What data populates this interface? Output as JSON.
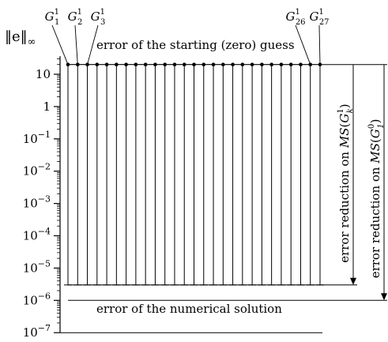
{
  "y_axis": {
    "label": "‖e‖",
    "label_sub": "∞",
    "scale": "log",
    "range": [
      1e-07,
      100
    ],
    "ticks": [
      {
        "exp": 1,
        "base": "10",
        "sup": ""
      },
      {
        "exp": 0,
        "base": "1",
        "sup": ""
      },
      {
        "exp": -1,
        "base": "10",
        "sup": "−1"
      },
      {
        "exp": -2,
        "base": "10",
        "sup": "−2"
      },
      {
        "exp": -3,
        "base": "10",
        "sup": "−3"
      },
      {
        "exp": -4,
        "base": "10",
        "sup": "−4"
      },
      {
        "exp": -5,
        "base": "10",
        "sup": "−5"
      },
      {
        "exp": -6,
        "base": "10",
        "sup": "−6"
      },
      {
        "exp": -7,
        "base": "10",
        "sup": "−7"
      }
    ]
  },
  "grids": {
    "count": 27,
    "start_error": 20,
    "end_error": 3e-06,
    "labels": [
      {
        "index": 1,
        "base": "G",
        "sup": "1",
        "sub": "1"
      },
      {
        "index": 2,
        "base": "G",
        "sup": "1",
        "sub": "2"
      },
      {
        "index": 3,
        "base": "G",
        "sup": "1",
        "sub": "3"
      },
      {
        "index": 26,
        "base": "G",
        "sup": "1",
        "sub": "26"
      },
      {
        "index": 27,
        "base": "G",
        "sup": "1",
        "sub": "27"
      }
    ]
  },
  "levels": {
    "starting_error": {
      "value": 20,
      "label": "error of the starting (zero) guess"
    },
    "numerical_error": {
      "value": 1e-06,
      "label": "error of the numerical solution"
    }
  },
  "arrows": [
    {
      "label_prefix": "error reduction on ",
      "ms": "MS",
      "base": "G",
      "sup": "1",
      "sub": "k",
      "from": 20,
      "to": 3e-06
    },
    {
      "label_prefix": "error reduction on ",
      "ms": "MS",
      "base": "G",
      "sup": "0",
      "sub": "1",
      "from": 20,
      "to": 1e-06
    }
  ]
}
